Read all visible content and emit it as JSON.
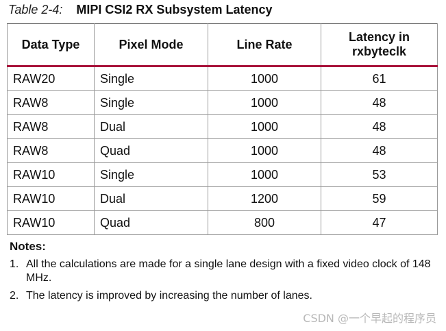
{
  "caption": {
    "number": "Table 2-4:",
    "title": "MIPI CSI2 RX Subsystem Latency"
  },
  "table": {
    "headers": [
      "Data Type",
      "Pixel Mode",
      "Line Rate",
      "Latency in rxbyteclk"
    ],
    "rows": [
      [
        "RAW20",
        "Single",
        "1000",
        "61"
      ],
      [
        "RAW8",
        "Single",
        "1000",
        "48"
      ],
      [
        "RAW8",
        "Dual",
        "1000",
        "48"
      ],
      [
        "RAW8",
        "Quad",
        "1000",
        "48"
      ],
      [
        "RAW10",
        "Single",
        "1000",
        "53"
      ],
      [
        "RAW10",
        "Dual",
        "1200",
        "59"
      ],
      [
        "RAW10",
        "Quad",
        "800",
        "47"
      ]
    ]
  },
  "notes": {
    "title": "Notes:",
    "items": [
      {
        "num": "1.",
        "text": "All the calculations are made for a single lane design with a fixed video clock of 148 MHz."
      },
      {
        "num": "2.",
        "text": "The latency is improved by increasing the number of lanes."
      }
    ]
  },
  "watermark": "CSDN @一个早起的程序员",
  "colors": {
    "header_rule": "#a8123a",
    "grid": "#9a9a9a",
    "watermark": "#b8b8b8"
  }
}
